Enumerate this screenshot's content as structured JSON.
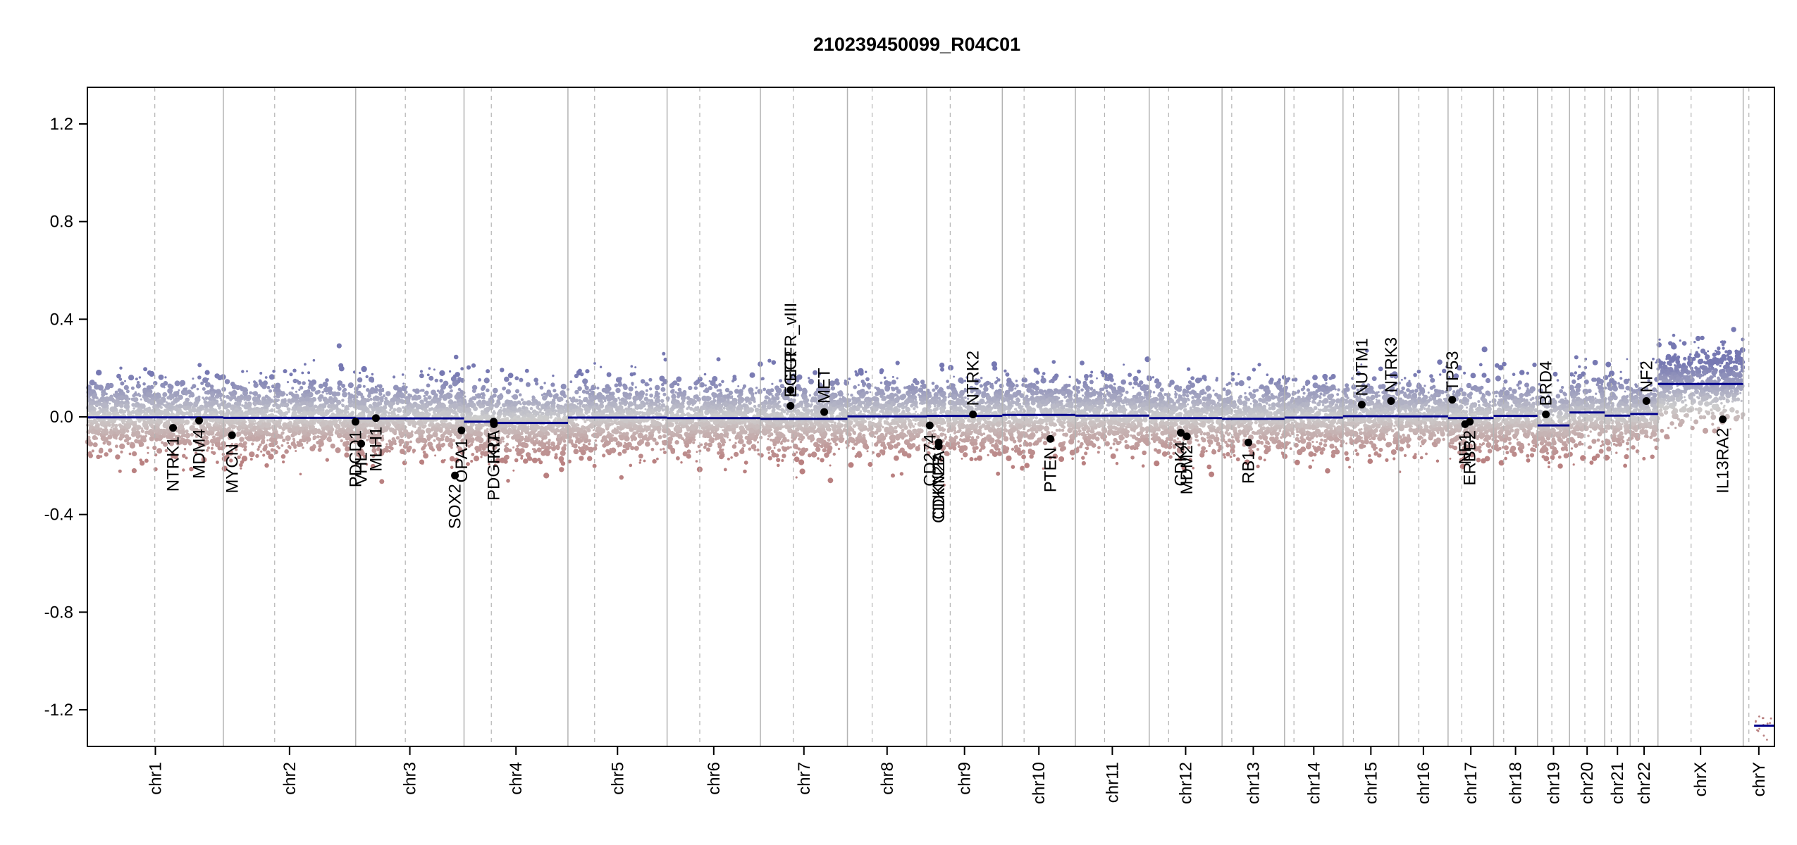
{
  "chart_data": {
    "type": "scatter",
    "title": "210239450099_R04C01",
    "xlabel": "",
    "ylabel": "",
    "ylim": [
      -1.35,
      1.35
    ],
    "yticks": [
      -1.2,
      -0.8,
      -0.4,
      0.0,
      0.4,
      0.8,
      1.2
    ],
    "ytick_labels": [
      "-1.2",
      "-0.8",
      "-0.4",
      "0.0",
      "0.4",
      "0.8",
      "1.2"
    ],
    "grid": false,
    "colors": {
      "gain": "#7c7fb5",
      "loss": "#b98a8a",
      "neutral": "#c8c8c8",
      "segment": "#00008b",
      "marker": "#000000",
      "boundary": "#b3b3b3"
    },
    "chromosomes": [
      {
        "name": "chr1",
        "length": 248.9,
        "segments": [
          {
            "start": 0,
            "end": 248.9,
            "value": -0.002
          }
        ]
      },
      {
        "name": "chr2",
        "length": 242.2,
        "segments": [
          {
            "start": 0,
            "end": 242.2,
            "value": -0.004
          }
        ]
      },
      {
        "name": "chr3",
        "length": 198.3,
        "segments": [
          {
            "start": 0,
            "end": 198.3,
            "value": -0.006
          }
        ]
      },
      {
        "name": "chr4",
        "length": 190.2,
        "segments": [
          {
            "start": 0,
            "end": 55,
            "value": -0.02
          },
          {
            "start": 55,
            "end": 190.2,
            "value": -0.025
          }
        ]
      },
      {
        "name": "chr5",
        "length": 181.5,
        "segments": [
          {
            "start": 0,
            "end": 181.5,
            "value": -0.003
          }
        ]
      },
      {
        "name": "chr6",
        "length": 170.8,
        "segments": [
          {
            "start": 0,
            "end": 170.8,
            "value": -0.005
          }
        ]
      },
      {
        "name": "chr7",
        "length": 159.3,
        "segments": [
          {
            "start": 0,
            "end": 159.3,
            "value": -0.008
          }
        ]
      },
      {
        "name": "chr8",
        "length": 145.1,
        "segments": [
          {
            "start": 0,
            "end": 145.1,
            "value": 0.002
          }
        ]
      },
      {
        "name": "chr9",
        "length": 138.4,
        "segments": [
          {
            "start": 0,
            "end": 138.4,
            "value": 0.004
          }
        ]
      },
      {
        "name": "chr10",
        "length": 133.8,
        "segments": [
          {
            "start": 0,
            "end": 133.8,
            "value": 0.008
          }
        ]
      },
      {
        "name": "chr11",
        "length": 135.1,
        "segments": [
          {
            "start": 0,
            "end": 135.1,
            "value": 0.005
          }
        ]
      },
      {
        "name": "chr12",
        "length": 133.3,
        "segments": [
          {
            "start": 0,
            "end": 133.3,
            "value": -0.005
          }
        ]
      },
      {
        "name": "chr13",
        "length": 114.4,
        "segments": [
          {
            "start": 0,
            "end": 114.4,
            "value": -0.008
          }
        ]
      },
      {
        "name": "chr14",
        "length": 107.0,
        "segments": [
          {
            "start": 0,
            "end": 107.0,
            "value": -0.003
          }
        ]
      },
      {
        "name": "chr15",
        "length": 102.0,
        "segments": [
          {
            "start": 0,
            "end": 102.0,
            "value": 0.003
          }
        ]
      },
      {
        "name": "chr16",
        "length": 90.3,
        "segments": [
          {
            "start": 0,
            "end": 90.3,
            "value": 0.002
          }
        ]
      },
      {
        "name": "chr17",
        "length": 83.3,
        "segments": [
          {
            "start": 0,
            "end": 83.3,
            "value": -0.005
          }
        ]
      },
      {
        "name": "chr18",
        "length": 80.4,
        "segments": [
          {
            "start": 0,
            "end": 80.4,
            "value": 0.004
          }
        ]
      },
      {
        "name": "chr19",
        "length": 58.6,
        "segments": [
          {
            "start": 0,
            "end": 58.6,
            "value": -0.035
          }
        ]
      },
      {
        "name": "chr20",
        "length": 64.4,
        "segments": [
          {
            "start": 0,
            "end": 64.4,
            "value": 0.018
          }
        ]
      },
      {
        "name": "chr21",
        "length": 46.7,
        "segments": [
          {
            "start": 0,
            "end": 46.7,
            "value": 0.005
          }
        ]
      },
      {
        "name": "chr22",
        "length": 50.8,
        "segments": [
          {
            "start": 0,
            "end": 50.8,
            "value": 0.012
          }
        ]
      },
      {
        "name": "chrX",
        "length": 156.0,
        "segments": [
          {
            "start": 0,
            "end": 156.0,
            "value": 0.135
          }
        ]
      },
      {
        "name": "chrY",
        "length": 57.2,
        "segments": [
          {
            "start": 20,
            "end": 57.2,
            "value": -1.265
          }
        ]
      }
    ],
    "genes": [
      {
        "name": "NTRK1",
        "chrom": "chr1",
        "pos": 156.8,
        "value": -0.045,
        "label_side": "below"
      },
      {
        "name": "MDM4",
        "chrom": "chr1",
        "pos": 204.5,
        "value": -0.015,
        "label_side": "below"
      },
      {
        "name": "MYCN",
        "chrom": "chr2",
        "pos": 15.9,
        "value": -0.075,
        "label_side": "below"
      },
      {
        "name": "PDCD1",
        "chrom": "chr2",
        "pos": 241.8,
        "value": -0.02,
        "label_side": "below"
      },
      {
        "name": "VHL",
        "chrom": "chr3",
        "pos": 10.1,
        "value": -0.11,
        "label_side": "below"
      },
      {
        "name": "MLH1",
        "chrom": "chr3",
        "pos": 37.0,
        "value": -0.005,
        "label_side": "below"
      },
      {
        "name": "SOX2",
        "chrom": "chr3",
        "pos": 181.7,
        "value": -0.24,
        "label_side": "below"
      },
      {
        "name": "OPA1",
        "chrom": "chr3",
        "pos": 193.6,
        "value": -0.055,
        "label_side": "below"
      },
      {
        "name": "PDGFRA",
        "chrom": "chr4",
        "pos": 54.2,
        "value": -0.02,
        "label_side": "below"
      },
      {
        "name": "KIT",
        "chrom": "chr4",
        "pos": 54.7,
        "value": -0.03,
        "label_side": "below"
      },
      {
        "name": "EGFR",
        "chrom": "chr7",
        "pos": 55.1,
        "value": 0.045,
        "label_side": "above"
      },
      {
        "name": "EGFR_vIII",
        "chrom": "chr7",
        "pos": 55.2,
        "value": 0.11,
        "label_side": "above"
      },
      {
        "name": "MET",
        "chrom": "chr7",
        "pos": 116.8,
        "value": 0.02,
        "label_side": "above"
      },
      {
        "name": "CD274",
        "chrom": "chr9",
        "pos": 5.5,
        "value": -0.035,
        "label_side": "below"
      },
      {
        "name": "CDKN2A",
        "chrom": "chr9",
        "pos": 21.97,
        "value": -0.105,
        "label_side": "below"
      },
      {
        "name": "CDKN2B",
        "chrom": "chr9",
        "pos": 22.0,
        "value": -0.12,
        "label_side": "below"
      },
      {
        "name": "NTRK2",
        "chrom": "chr9",
        "pos": 84.7,
        "value": 0.01,
        "label_side": "above"
      },
      {
        "name": "PTEN",
        "chrom": "chr10",
        "pos": 87.9,
        "value": -0.09,
        "label_side": "below"
      },
      {
        "name": "CDK4",
        "chrom": "chr12",
        "pos": 57.7,
        "value": -0.065,
        "label_side": "below"
      },
      {
        "name": "MDM2",
        "chrom": "chr12",
        "pos": 68.8,
        "value": -0.08,
        "label_side": "below"
      },
      {
        "name": "RB1",
        "chrom": "chr13",
        "pos": 48.3,
        "value": -0.105,
        "label_side": "below"
      },
      {
        "name": "NUTM1",
        "chrom": "chr15",
        "pos": 34.3,
        "value": 0.05,
        "label_side": "above"
      },
      {
        "name": "NTRK3",
        "chrom": "chr15",
        "pos": 87.9,
        "value": 0.065,
        "label_side": "above"
      },
      {
        "name": "TP53",
        "chrom": "chr17",
        "pos": 7.6,
        "value": 0.07,
        "label_side": "above"
      },
      {
        "name": "NF1",
        "chrom": "chr17",
        "pos": 31.1,
        "value": -0.03,
        "label_side": "below"
      },
      {
        "name": "ERBB2",
        "chrom": "chr17",
        "pos": 39.7,
        "value": -0.02,
        "label_side": "below"
      },
      {
        "name": "BRD4",
        "chrom": "chr19",
        "pos": 15.3,
        "value": 0.01,
        "label_side": "above"
      },
      {
        "name": "NF2",
        "chrom": "chr22",
        "pos": 29.6,
        "value": 0.065,
        "label_side": "above"
      },
      {
        "name": "IL13RA2",
        "chrom": "chrX",
        "pos": 118.6,
        "value": -0.01,
        "label_side": "below"
      }
    ]
  }
}
